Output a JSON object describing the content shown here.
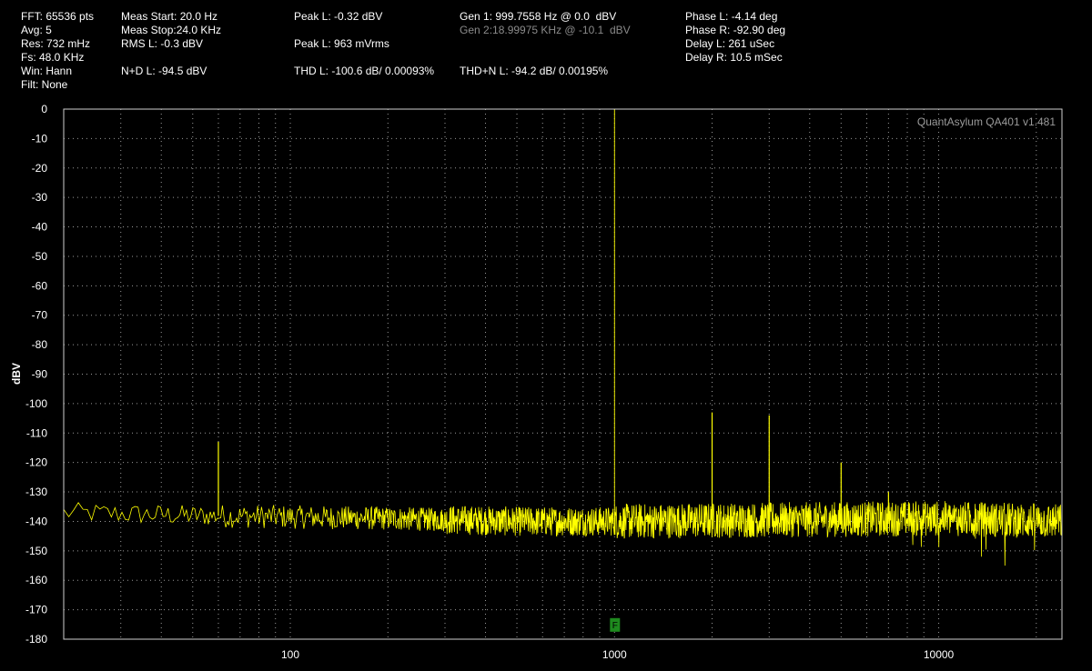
{
  "readouts": {
    "fft": "FFT: 65536 pts",
    "avg": "Avg: 5",
    "res": "Res: 732 mHz",
    "fs": "Fs: 48.0 KHz",
    "win": "Win: Hann",
    "filt": "Filt: None",
    "meas_start": "Meas Start: 20.0 Hz",
    "meas_stop": "Meas Stop:24.0 KHz",
    "rms_l": "RMS L: -0.3 dBV",
    "nd_l": "N+D L: -94.5 dBV",
    "peak_l_dbv": "Peak L: -0.32 dBV",
    "peak_l_mvrms": "Peak L: 963 mVrms",
    "thd_l": "THD L: -100.6 dB/ 0.00093%",
    "gen1": "Gen 1: 999.7558 Hz @ 0.0  dBV",
    "gen2": "Gen 2:18.99975 KHz @ -10.1  dBV",
    "thdn_l": "THD+N L: -94.2 dB/ 0.00195%",
    "phase_l": "Phase L: -4.14 deg",
    "phase_r": "Phase R: -92.90 deg",
    "delay_l": "Delay L: 261 uSec",
    "delay_r": "Delay R: 10.5 mSec"
  },
  "watermark": "QuantAsylum QA401 v1.481",
  "marker_label": "F",
  "colors": {
    "trace": "#ffff00",
    "grid": "#9a9a9a",
    "frame": "#cfcfcf",
    "marker": "#1e8a1e",
    "background": "#000000"
  },
  "chart_data": {
    "type": "line",
    "title": "",
    "xlabel": "",
    "ylabel": "dBV",
    "xscale": "log",
    "xlim": [
      20,
      24000
    ],
    "ylim": [
      -180,
      0
    ],
    "xticks": [
      100,
      1000,
      10000
    ],
    "yticks": [
      0,
      -10,
      -20,
      -30,
      -40,
      -50,
      -60,
      -70,
      -80,
      -90,
      -100,
      -110,
      -120,
      -130,
      -140,
      -150,
      -160,
      -170,
      -180
    ],
    "grid": true,
    "marker": {
      "x": 1000,
      "y": -175
    },
    "series": [
      {
        "noise_floor": [
          [
            20,
            -137
          ],
          [
            50,
            -138
          ],
          [
            200,
            -139
          ],
          [
            500,
            -140
          ],
          [
            1000,
            -140
          ],
          [
            3000,
            -139.5
          ],
          [
            10000,
            -139
          ],
          [
            24000,
            -140
          ]
        ],
        "spikes": [
          {
            "x": 60,
            "y": -113
          },
          {
            "x": 1000,
            "y": 0
          },
          {
            "x": 2000,
            "y": -103
          },
          {
            "x": 3000,
            "y": -104
          },
          {
            "x": 5000,
            "y": -120
          },
          {
            "x": 7000,
            "y": -130
          }
        ]
      }
    ]
  }
}
